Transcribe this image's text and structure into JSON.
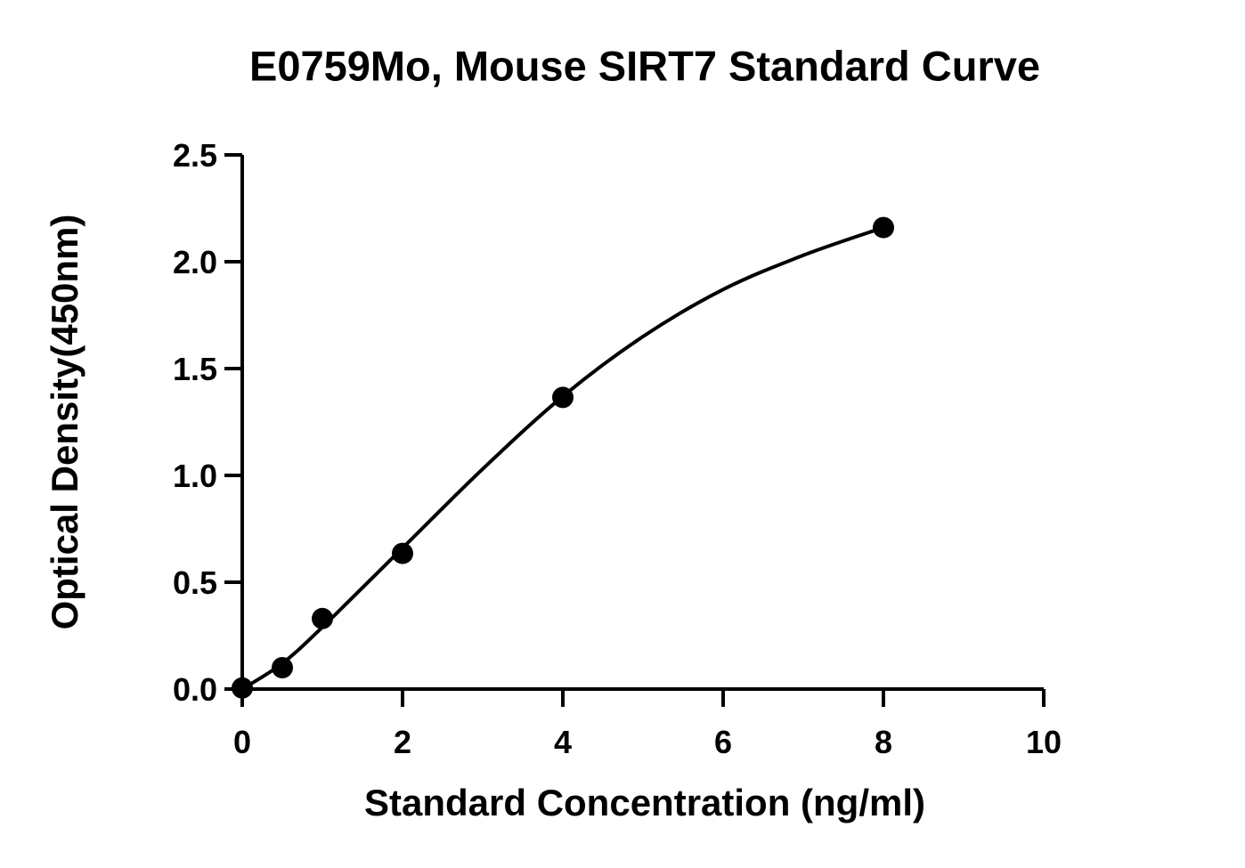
{
  "chart_data": {
    "type": "scatter",
    "title": "E0759Mo, Mouse SIRT7 Standard Curve",
    "x_label": "Standard Concentration (ng/ml)",
    "y_label": "Optical Density(450nm)",
    "xlim": [
      0,
      10
    ],
    "xticks": [
      0,
      2,
      4,
      6,
      8,
      10
    ],
    "ylim": [
      0,
      2.5
    ],
    "yticks": [
      {
        "value": 0,
        "label": "0.0"
      },
      0.5,
      {
        "value": 1,
        "label": "1.0"
      },
      1.5,
      {
        "value": 2,
        "label": "2.0"
      },
      2.5
    ],
    "points": {
      "x": [
        0,
        0.5,
        1,
        2,
        4,
        8
      ],
      "values": [
        0.005,
        0.1,
        0.33,
        0.635,
        1.365,
        2.16
      ],
      "color": "#000000"
    },
    "fit": {
      "x": [
        0,
        0.5,
        1,
        2,
        3,
        4,
        5,
        6,
        7,
        8
      ],
      "values": [
        0,
        0.12,
        0.29,
        0.66,
        1.03,
        1.37,
        1.65,
        1.87,
        2.03,
        2.16
      ],
      "color": "#000000"
    }
  }
}
